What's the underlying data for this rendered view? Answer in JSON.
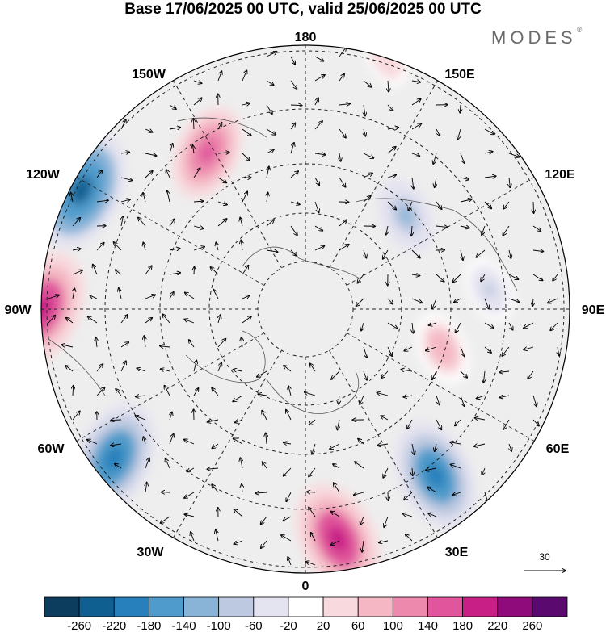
{
  "title": "Base 17/06/2025 00 UTC, valid 25/06/2025 00 UTC",
  "brand": "MODES",
  "brand_mark": "®",
  "longitude_labels": {
    "top": "180",
    "top_left": "150W",
    "top_right": "150E",
    "upper_left": "120W",
    "upper_right": "120E",
    "left": "90W",
    "right": "90E",
    "lower_left": "60W",
    "lower_right": "60E",
    "bottom_left": "30W",
    "bottom_right": "30E",
    "bottom": "0"
  },
  "vector_reference": {
    "value": "30"
  },
  "colorbar": {
    "tick_labels": [
      "-260",
      "-220",
      "-180",
      "-140",
      "-100",
      "-60",
      "-20",
      "20",
      "60",
      "100",
      "140",
      "180",
      "220",
      "260"
    ],
    "colors": [
      "#0c3c5e",
      "#0f5f91",
      "#2780bb",
      "#4f9bcb",
      "#89b4d8",
      "#bdc9e0",
      "#e4e3f0",
      "#ffffff",
      "#f8dade",
      "#f4b7c3",
      "#ec89ad",
      "#e0559b",
      "#c71f85",
      "#8f0a7a",
      "#5a0a6f"
    ]
  },
  "anomalies": [
    {
      "lon": -118,
      "lat": 42,
      "value": -230
    },
    {
      "lon": -90,
      "lat": 40,
      "value": 220
    },
    {
      "lon": -52,
      "lat": 44,
      "value": -210
    },
    {
      "lon": 8,
      "lat": 46,
      "value": 210
    },
    {
      "lon": 38,
      "lat": 50,
      "value": -200
    },
    {
      "lon": -148,
      "lat": 55,
      "value": 150
    },
    {
      "lon": 133,
      "lat": 64,
      "value": -100
    },
    {
      "lon": 96,
      "lat": 55,
      "value": -70
    },
    {
      "lon": 74,
      "lat": 63,
      "value": 90
    },
    {
      "lon": 162,
      "lat": 40,
      "value": 50
    }
  ]
}
